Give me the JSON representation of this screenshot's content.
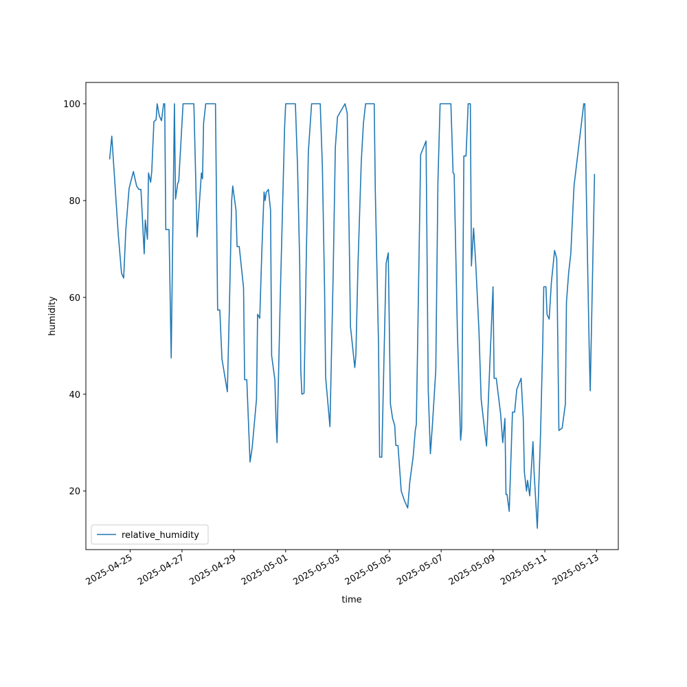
{
  "chart_data": {
    "type": "line",
    "xlabel": "time",
    "ylabel": "humidity",
    "x": [
      "2025-04-24T05:00",
      "2025-04-24T07:00",
      "2025-04-24T13:00",
      "2025-04-24T16:00",
      "2025-04-24T18:00",
      "2025-04-24T20:00",
      "2025-04-24T23:00",
      "2025-04-25T03:00",
      "2025-04-25T06:00",
      "2025-04-25T08:00",
      "2025-04-25T10:00",
      "2025-04-25T13:00",
      "2025-04-25T14:00",
      "2025-04-25T16:00",
      "2025-04-25T17:00",
      "2025-04-25T19:00",
      "2025-04-25T20:00",
      "2025-04-25T22:00",
      "2025-04-26T00:00",
      "2025-04-26T01:00",
      "2025-04-26T03:00",
      "2025-04-26T05:00",
      "2025-04-26T07:00",
      "2025-04-26T08:00",
      "2025-04-26T09:00",
      "2025-04-26T12:00",
      "2025-04-26T14:00",
      "2025-04-26T17:00",
      "2025-04-26T18:00",
      "2025-04-26T20:00",
      "2025-04-26T21:00",
      "2025-04-27T01:00",
      "2025-04-27T11:00",
      "2025-04-27T12:00",
      "2025-04-27T14:00",
      "2025-04-27T18:00",
      "2025-04-27T19:00",
      "2025-04-27T20:00",
      "2025-04-27T22:00",
      "2025-04-28T07:00",
      "2025-04-28T09:00",
      "2025-04-28T11:00",
      "2025-04-28T13:00",
      "2025-04-28T18:00",
      "2025-04-28T20:00",
      "2025-04-28T22:00",
      "2025-04-28T23:00",
      "2025-04-29T02:00",
      "2025-04-29T03:00",
      "2025-04-29T05:00",
      "2025-04-29T09:00",
      "2025-04-29T10:00",
      "2025-04-29T12:00",
      "2025-04-29T15:00",
      "2025-04-29T17:00",
      "2025-04-29T21:00",
      "2025-04-29T22:00",
      "2025-04-30T00:00",
      "2025-04-30T02:00",
      "2025-04-30T04:00",
      "2025-04-30T05:00",
      "2025-04-30T06:00",
      "2025-04-30T08:00",
      "2025-04-30T10:00",
      "2025-04-30T11:00",
      "2025-04-30T14:00",
      "2025-04-30T15:00",
      "2025-04-30T16:00",
      "2025-04-30T19:00",
      "2025-04-30T23:00",
      "2025-05-01T00:00",
      "2025-05-01T09:00",
      "2025-05-01T11:00",
      "2025-05-01T13:00",
      "2025-05-01T14:00",
      "2025-05-01T15:00",
      "2025-05-01T17:00",
      "2025-05-01T19:00",
      "2025-05-01T21:00",
      "2025-05-02T00:00",
      "2025-05-02T08:00",
      "2025-05-02T10:00",
      "2025-05-02T12:00",
      "2025-05-02T13:00",
      "2025-05-02T17:00",
      "2025-05-02T20:00",
      "2025-05-02T22:00",
      "2025-05-03T00:00",
      "2025-05-03T07:00",
      "2025-05-03T09:00",
      "2025-05-03T11:00",
      "2025-05-03T12:00",
      "2025-05-03T16:00",
      "2025-05-03T17:00",
      "2025-05-03T19:00",
      "2025-05-03T22:00",
      "2025-05-04T00:00",
      "2025-05-04T02:00",
      "2025-05-04T10:00",
      "2025-05-04T11:00",
      "2025-05-04T14:00",
      "2025-05-04T15:00",
      "2025-05-04T17:00",
      "2025-05-04T21:00",
      "2025-05-04T23:00",
      "2025-05-05T01:00",
      "2025-05-05T03:00",
      "2025-05-05T05:00",
      "2025-05-05T06:00",
      "2025-05-05T08:00",
      "2025-05-05T11:00",
      "2025-05-05T14:00",
      "2025-05-05T17:00",
      "2025-05-05T19:00",
      "2025-05-05T22:00",
      "2025-05-06T00:00",
      "2025-05-06T01:00",
      "2025-05-06T05:00",
      "2025-05-06T10:00",
      "2025-05-06T12:00",
      "2025-05-06T14:00",
      "2025-05-06T16:00",
      "2025-05-06T19:00",
      "2025-05-06T21:00",
      "2025-05-06T23:00",
      "2025-05-07T09:00",
      "2025-05-07T11:00",
      "2025-05-07T12:00",
      "2025-05-07T15:00",
      "2025-05-07T18:00",
      "2025-05-07T19:00",
      "2025-05-07T21:00",
      "2025-05-07T23:00",
      "2025-05-08T01:00",
      "2025-05-08T03:00",
      "2025-05-08T04:00",
      "2025-05-08T06:00",
      "2025-05-08T08:00",
      "2025-05-08T11:00",
      "2025-05-08T13:00",
      "2025-05-08T16:00",
      "2025-05-08T18:00",
      "2025-05-08T21:00",
      "2025-05-09T00:00",
      "2025-05-09T01:00",
      "2025-05-09T03:00",
      "2025-05-09T07:00",
      "2025-05-09T09:00",
      "2025-05-09T11:00",
      "2025-05-09T12:00",
      "2025-05-09T13:00",
      "2025-05-09T15:00",
      "2025-05-09T18:00",
      "2025-05-09T20:00",
      "2025-05-09T22:00",
      "2025-05-10T02:00",
      "2025-05-10T04:00",
      "2025-05-10T05:00",
      "2025-05-10T07:00",
      "2025-05-10T08:00",
      "2025-05-10T10:00",
      "2025-05-10T13:00",
      "2025-05-10T14:00",
      "2025-05-10T17:00",
      "2025-05-10T19:00",
      "2025-05-10T20:00",
      "2025-05-10T22:00",
      "2025-05-10T23:00",
      "2025-05-11T01:00",
      "2025-05-11T02:00",
      "2025-05-11T04:00",
      "2025-05-11T06:00",
      "2025-05-11T09:00",
      "2025-05-11T11:00",
      "2025-05-11T13:00",
      "2025-05-11T16:00",
      "2025-05-11T19:00",
      "2025-05-11T20:00",
      "2025-05-11T22:00",
      "2025-05-12T00:00",
      "2025-05-12T03:00",
      "2025-05-12T12:00",
      "2025-05-12T13:00",
      "2025-05-12T15:00",
      "2025-05-12T17:00",
      "2025-05-12T18:00",
      "2025-05-12T20:00",
      "2025-05-12T22:00"
    ],
    "series": [
      {
        "name": "relative_humidity",
        "color": "#1f77b4",
        "values": [
          88.5,
          93.3,
          73,
          65,
          64,
          74,
          82.5,
          86,
          83,
          82.3,
          82.3,
          69,
          76,
          72,
          85.7,
          83.8,
          86,
          96.3,
          96.7,
          100,
          97.5,
          96.5,
          100,
          100,
          74,
          74,
          47.5,
          100,
          80.3,
          83.5,
          84,
          100,
          100,
          91,
          72.5,
          85.7,
          84.5,
          96,
          100,
          100,
          57.4,
          57.4,
          47.3,
          40.5,
          59,
          80,
          83,
          78,
          70.5,
          70.5,
          62,
          43,
          43,
          26,
          29,
          39,
          56.5,
          55.7,
          70,
          81.8,
          80,
          81.7,
          82.3,
          78,
          48,
          43,
          35,
          30,
          60,
          95,
          100,
          100,
          87,
          67,
          45,
          40,
          40.2,
          67,
          90,
          100,
          100,
          87,
          62,
          43.5,
          33.3,
          65,
          91,
          97.3,
          100,
          98,
          70,
          54,
          45.5,
          48,
          67,
          88,
          96,
          100,
          100,
          82,
          50,
          27,
          27,
          67,
          69.2,
          38,
          35,
          33.5,
          29.4,
          29.4,
          20,
          18,
          16.5,
          22,
          27,
          32.5,
          33.8,
          89.5,
          92.3,
          41,
          27.7,
          34,
          45,
          84,
          100,
          100,
          85.7,
          85.5,
          53,
          30.5,
          33,
          89.2,
          89.2,
          100,
          100,
          66.5,
          74.3,
          67,
          53,
          39,
          33,
          29.3,
          46,
          62.2,
          43.3,
          43.3,
          36,
          30,
          35,
          19.3,
          19.3,
          15.8,
          36.3,
          36.3,
          41,
          43.3,
          35,
          24,
          20,
          22.2,
          19,
          30.2,
          24,
          12.3,
          25,
          32,
          50,
          62.2,
          62.2,
          56.5,
          55.5,
          63,
          69.7,
          68,
          32.5,
          33,
          38,
          59,
          65,
          69,
          83,
          100,
          100,
          74,
          50,
          40.7,
          63,
          85.5
        ]
      }
    ],
    "xlim": [
      "2025-04-23T07:00",
      "2025-05-13T20:00"
    ],
    "xticks": [
      "2025-04-25",
      "2025-04-27",
      "2025-04-29",
      "2025-05-01",
      "2025-05-03",
      "2025-05-05",
      "2025-05-07",
      "2025-05-09",
      "2025-05-11",
      "2025-05-13"
    ],
    "ylim": [
      7.9,
      104.4
    ],
    "yticks": [
      20,
      40,
      60,
      80,
      100
    ],
    "legend": "lower left"
  }
}
